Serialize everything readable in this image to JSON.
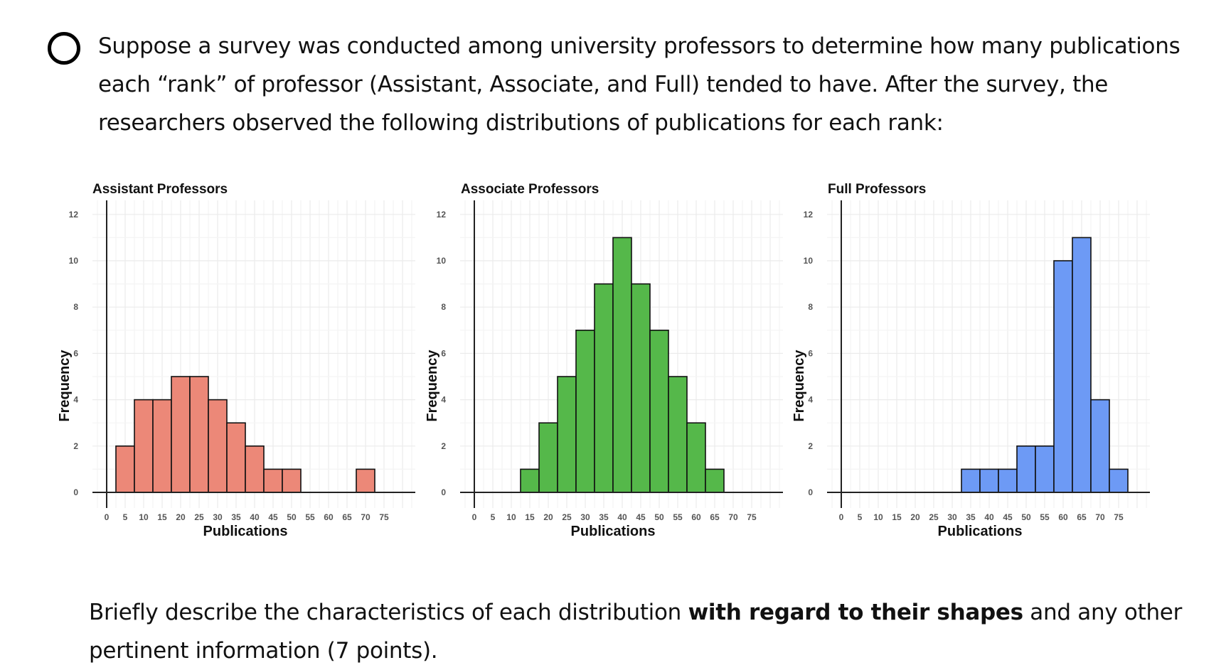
{
  "question": {
    "marker_icon": "radio-circle-icon",
    "intro_text": "Suppose a survey was conducted among university professors to determine how many publications each “rank” of professor (Assistant, Associate, and Full) tended to have. After the survey, the researchers observed the following distributions of publications for each rank:",
    "prompt_pre": "Briefly describe the characteristics of each distribution ",
    "prompt_bold": "with regard to their shapes",
    "prompt_post": " and any other pertinent information (7 points)."
  },
  "chart_data": [
    {
      "type": "bar",
      "title": "Assistant Professors",
      "xlabel": "Publications",
      "ylabel": "Frequency",
      "color": "#EC8878",
      "bin_width": 5,
      "bin_centers": [
        5,
        10,
        15,
        20,
        25,
        30,
        35,
        40,
        45,
        50,
        55,
        60,
        65,
        70
      ],
      "values": [
        2,
        4,
        4,
        5,
        5,
        4,
        3,
        2,
        1,
        1,
        0,
        0,
        0,
        1
      ],
      "x_ticks": [
        0,
        5,
        10,
        15,
        20,
        25,
        30,
        35,
        40,
        45,
        50,
        55,
        60,
        65,
        70,
        75
      ],
      "y_ticks": [
        0,
        2,
        4,
        6,
        8,
        10,
        12
      ],
      "xlim": [
        -3,
        84
      ],
      "ylim": [
        0,
        12.5
      ],
      "grid": true
    },
    {
      "type": "bar",
      "title": "Associate Professors",
      "xlabel": "Publications",
      "ylabel": "Frequency",
      "color": "#55B84A",
      "bin_width": 5,
      "bin_centers": [
        15,
        20,
        25,
        30,
        35,
        40,
        45,
        50,
        55,
        60,
        65
      ],
      "values": [
        1,
        3,
        5,
        7,
        9,
        11,
        9,
        7,
        5,
        3,
        1
      ],
      "x_ticks": [
        0,
        5,
        10,
        15,
        20,
        25,
        30,
        35,
        40,
        45,
        50,
        55,
        60,
        65,
        70,
        75
      ],
      "y_ticks": [
        0,
        2,
        4,
        6,
        8,
        10,
        12
      ],
      "xlim": [
        -3,
        84
      ],
      "ylim": [
        0,
        12.5
      ],
      "grid": true
    },
    {
      "type": "bar",
      "title": "Full Professors",
      "xlabel": "Publications",
      "ylabel": "Frequency",
      "color": "#6D9AF5",
      "bin_width": 5,
      "bin_centers": [
        35,
        40,
        45,
        50,
        55,
        60,
        65,
        70,
        75
      ],
      "values": [
        1,
        1,
        1,
        2,
        2,
        10,
        11,
        4,
        1
      ],
      "x_ticks": [
        0,
        5,
        10,
        15,
        20,
        25,
        30,
        35,
        40,
        45,
        50,
        55,
        60,
        65,
        70,
        75
      ],
      "y_ticks": [
        0,
        2,
        4,
        6,
        8,
        10,
        12
      ],
      "xlim": [
        -3,
        84
      ],
      "ylim": [
        0,
        12.5
      ],
      "grid": true
    }
  ]
}
